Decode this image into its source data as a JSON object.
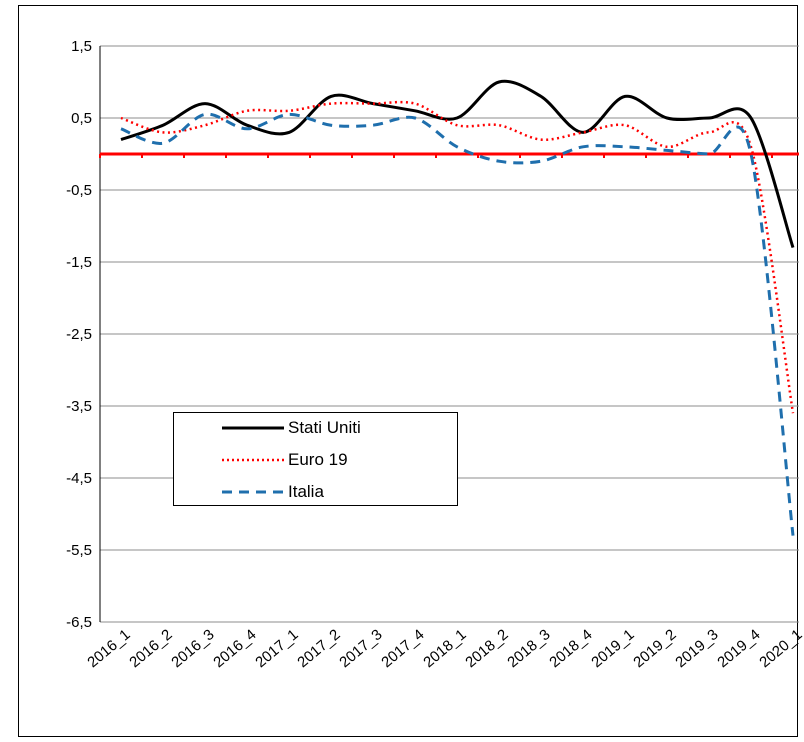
{
  "chart_data": {
    "type": "line",
    "title": "",
    "xlabel": "",
    "ylabel": "",
    "categories": [
      "2016_1",
      "2016_2",
      "2016_3",
      "2016_4",
      "2017_1",
      "2017_2",
      "2017_3",
      "2017_4",
      "2018_1",
      "2018_2",
      "2018_3",
      "2018_4",
      "2019_1",
      "2019_2",
      "2019_3",
      "2019_4",
      "2020_1"
    ],
    "ylim": [
      -6.5,
      1.5
    ],
    "yticks": [
      1.5,
      0.5,
      -0.5,
      -1.5,
      -2.5,
      -3.5,
      -4.5,
      -5.5,
      -6.5
    ],
    "ytick_labels": [
      "1,5",
      "0,5",
      "-0,5",
      "-1,5",
      "-2,5",
      "-3,5",
      "-4,5",
      "-5,5",
      "-6,5"
    ],
    "reference_line": {
      "value": 0,
      "color": "#ff0000"
    },
    "grid": true,
    "legend_position": "lower-left",
    "series": [
      {
        "name": "Stati Uniti",
        "color": "#000000",
        "style": "solid",
        "values": [
          0.2,
          0.4,
          0.7,
          0.4,
          0.3,
          0.8,
          0.7,
          0.6,
          0.5,
          1.0,
          0.8,
          0.3,
          0.8,
          0.5,
          0.5,
          0.5,
          -1.3
        ]
      },
      {
        "name": "Euro 19",
        "color": "#ff0000",
        "style": "dotted",
        "values": [
          0.5,
          0.3,
          0.4,
          0.6,
          0.6,
          0.7,
          0.7,
          0.7,
          0.4,
          0.4,
          0.2,
          0.3,
          0.4,
          0.1,
          0.3,
          0.1,
          -3.6
        ]
      },
      {
        "name": "Italia",
        "color": "#1f6fad",
        "style": "dashed",
        "values": [
          0.35,
          0.15,
          0.55,
          0.35,
          0.55,
          0.4,
          0.4,
          0.5,
          0.1,
          -0.1,
          -0.1,
          0.1,
          0.1,
          0.05,
          0.0,
          0.0,
          -5.3
        ]
      }
    ]
  }
}
